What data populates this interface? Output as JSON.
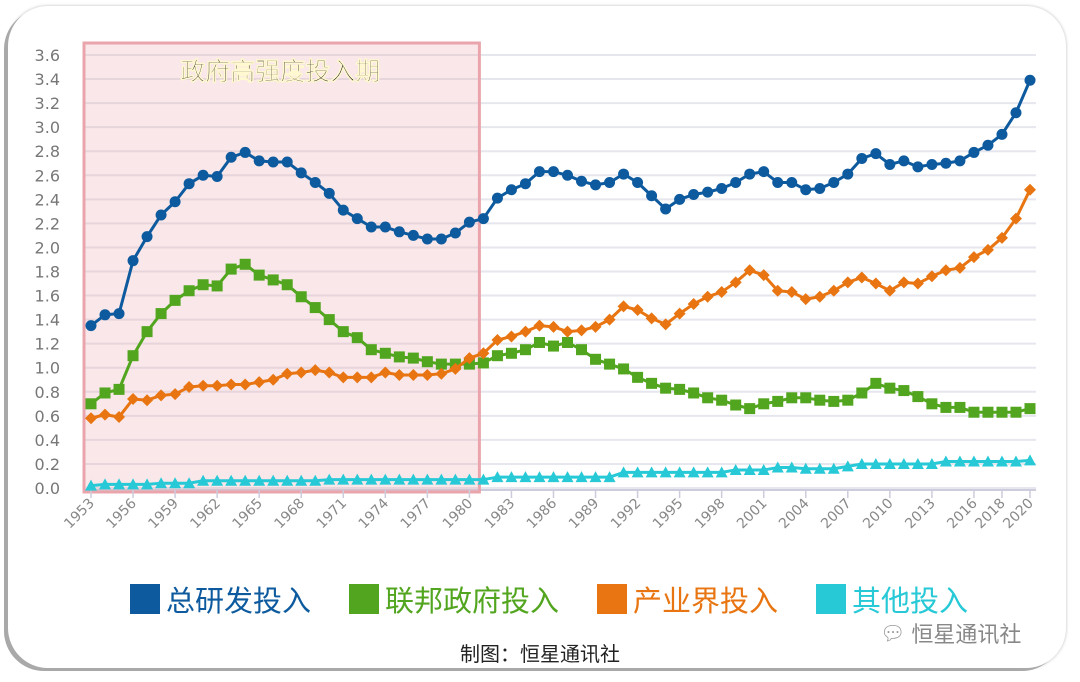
{
  "chart_data": {
    "type": "line",
    "annotation": "政府高强度投入期",
    "highlight_range": [
      1953,
      1980
    ],
    "ylim": [
      0,
      3.6
    ],
    "yticks": [
      "0.0",
      "0.2",
      "0.4",
      "0.6",
      "0.8",
      "1.0",
      "1.2",
      "1.4",
      "1.6",
      "1.8",
      "2.0",
      "2.2",
      "2.4",
      "2.6",
      "2.8",
      "3.0",
      "3.2",
      "3.4",
      "3.6"
    ],
    "xticks": [
      "1953",
      "1956",
      "1959",
      "1962",
      "1965",
      "1968",
      "1971",
      "1974",
      "1977",
      "1980",
      "1983",
      "1986",
      "1989",
      "1992",
      "1995",
      "1998",
      "2001",
      "2004",
      "2007",
      "2010",
      "2013",
      "2016",
      "2018",
      "2020"
    ],
    "grid": true,
    "legend_position": "bottom",
    "x_start": 1953,
    "x_end": 2020,
    "series": [
      {
        "name": "总研发投入",
        "color": "#0d5a9e",
        "marker": "circle",
        "values": [
          1.35,
          1.44,
          1.45,
          1.89,
          2.09,
          2.27,
          2.38,
          2.53,
          2.6,
          2.59,
          2.75,
          2.79,
          2.72,
          2.71,
          2.71,
          2.62,
          2.54,
          2.45,
          2.31,
          2.24,
          2.17,
          2.17,
          2.13,
          2.1,
          2.07,
          2.07,
          2.12,
          2.21,
          2.24,
          2.41,
          2.48,
          2.53,
          2.63,
          2.63,
          2.6,
          2.55,
          2.52,
          2.54,
          2.61,
          2.54,
          2.43,
          2.32,
          2.4,
          2.44,
          2.46,
          2.49,
          2.54,
          2.61,
          2.63,
          2.54,
          2.54,
          2.48,
          2.49,
          2.54,
          2.61,
          2.74,
          2.78,
          2.69,
          2.72,
          2.67,
          2.69,
          2.7,
          2.72,
          2.79,
          2.85,
          2.94,
          3.12,
          3.39
        ]
      },
      {
        "name": "联邦政府投入",
        "color": "#52a51e",
        "marker": "square",
        "values": [
          0.7,
          0.79,
          0.82,
          1.1,
          1.3,
          1.45,
          1.56,
          1.64,
          1.69,
          1.68,
          1.82,
          1.86,
          1.77,
          1.73,
          1.69,
          1.59,
          1.5,
          1.4,
          1.3,
          1.25,
          1.15,
          1.12,
          1.09,
          1.08,
          1.05,
          1.03,
          1.03,
          1.03,
          1.04,
          1.1,
          1.12,
          1.15,
          1.21,
          1.18,
          1.21,
          1.15,
          1.07,
          1.03,
          0.99,
          0.92,
          0.87,
          0.83,
          0.82,
          0.79,
          0.75,
          0.73,
          0.69,
          0.66,
          0.7,
          0.72,
          0.75,
          0.75,
          0.73,
          0.72,
          0.73,
          0.79,
          0.87,
          0.83,
          0.81,
          0.76,
          0.7,
          0.67,
          0.67,
          0.63,
          0.63,
          0.63,
          0.63,
          0.66
        ]
      },
      {
        "name": "产业界投入",
        "color": "#e87511",
        "marker": "diamond",
        "values": [
          0.58,
          0.61,
          0.59,
          0.74,
          0.73,
          0.77,
          0.78,
          0.84,
          0.85,
          0.85,
          0.86,
          0.86,
          0.88,
          0.9,
          0.95,
          0.96,
          0.98,
          0.96,
          0.92,
          0.92,
          0.92,
          0.96,
          0.94,
          0.94,
          0.94,
          0.95,
          0.99,
          1.08,
          1.12,
          1.23,
          1.26,
          1.3,
          1.35,
          1.34,
          1.3,
          1.31,
          1.34,
          1.4,
          1.51,
          1.48,
          1.41,
          1.36,
          1.45,
          1.53,
          1.59,
          1.63,
          1.71,
          1.81,
          1.77,
          1.64,
          1.63,
          1.57,
          1.59,
          1.64,
          1.71,
          1.75,
          1.7,
          1.64,
          1.71,
          1.7,
          1.76,
          1.81,
          1.83,
          1.92,
          1.98,
          2.08,
          2.24,
          2.48
        ]
      },
      {
        "name": "其他投入",
        "color": "#27c9d6",
        "marker": "triangle",
        "values": [
          0.02,
          0.03,
          0.03,
          0.03,
          0.03,
          0.04,
          0.04,
          0.04,
          0.06,
          0.06,
          0.06,
          0.06,
          0.06,
          0.06,
          0.06,
          0.06,
          0.06,
          0.07,
          0.07,
          0.07,
          0.07,
          0.07,
          0.07,
          0.07,
          0.07,
          0.07,
          0.07,
          0.07,
          0.07,
          0.09,
          0.09,
          0.09,
          0.09,
          0.09,
          0.09,
          0.09,
          0.09,
          0.09,
          0.13,
          0.13,
          0.13,
          0.13,
          0.13,
          0.13,
          0.13,
          0.13,
          0.15,
          0.15,
          0.15,
          0.17,
          0.17,
          0.16,
          0.16,
          0.16,
          0.18,
          0.2,
          0.2,
          0.2,
          0.2,
          0.2,
          0.2,
          0.22,
          0.22,
          0.22,
          0.22,
          0.22,
          0.22,
          0.23
        ]
      }
    ]
  },
  "credit": "制图：恒星通讯社",
  "watermark": "恒星通讯社"
}
